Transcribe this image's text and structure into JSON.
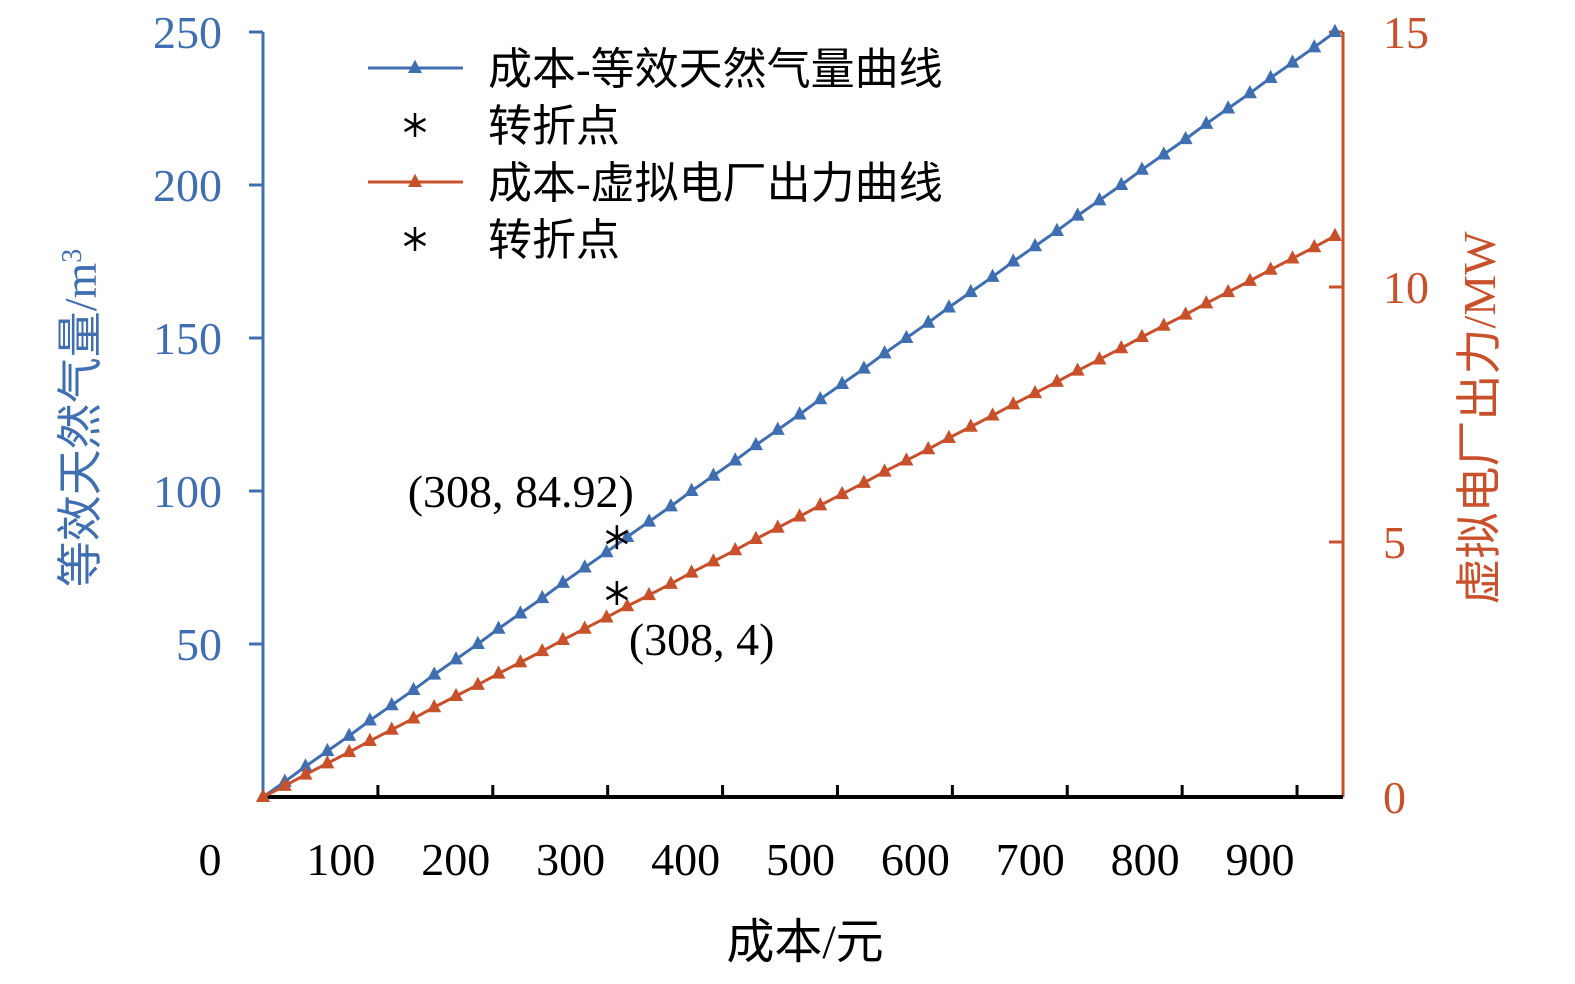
{
  "chart_data": {
    "type": "line",
    "title": "",
    "xlabel": "成本/元",
    "x_ticks": [
      "0",
      "100",
      "200",
      "300",
      "400",
      "500",
      "600",
      "700",
      "800",
      "900"
    ],
    "xlim": [
      0,
      940
    ],
    "y_left": {
      "label": "等效天然气量/m",
      "label_sup": "3",
      "ticks": [
        "50",
        "100",
        "150",
        "200",
        "250"
      ],
      "ylim": [
        0,
        250
      ],
      "color": "#3f6fb0"
    },
    "y_right": {
      "label": "虚拟电厂出力/MW",
      "ticks": [
        "0",
        "5",
        "10",
        "15"
      ],
      "ylim": [
        0,
        15
      ],
      "color": "#c8502a"
    },
    "series": [
      {
        "name": "成本-等效天然气量曲线",
        "axis": "left",
        "color": "#3f6fb0",
        "x": [
          0,
          19,
          37,
          56,
          75,
          93,
          112,
          131,
          149,
          168,
          187,
          205,
          224,
          243,
          261,
          280,
          299,
          317,
          336,
          355,
          373,
          392,
          411,
          429,
          448,
          467,
          485,
          504,
          523,
          541,
          560,
          579,
          597,
          616,
          635,
          653,
          672,
          691,
          709,
          728,
          747,
          765,
          784,
          803,
          821,
          840,
          859,
          877,
          896,
          915,
          933
        ],
        "y": [
          0,
          5,
          10,
          15,
          20,
          25,
          30,
          35,
          40,
          45,
          50,
          55,
          60,
          65,
          70,
          75,
          80,
          85,
          90,
          95,
          100,
          105,
          110,
          115,
          120,
          125,
          130,
          135,
          140,
          145,
          150,
          155,
          160,
          165,
          170,
          175,
          180,
          185,
          190,
          195,
          200,
          205,
          210,
          215,
          220,
          225,
          230,
          235,
          240,
          245,
          250
        ]
      },
      {
        "name": "成本-虚拟电厂出力曲线",
        "axis": "right",
        "color": "#c8502a",
        "x": [
          0,
          19,
          37,
          56,
          75,
          93,
          112,
          131,
          149,
          168,
          187,
          205,
          224,
          243,
          261,
          280,
          299,
          317,
          336,
          355,
          373,
          392,
          411,
          429,
          448,
          467,
          485,
          504,
          523,
          541,
          560,
          579,
          597,
          616,
          635,
          653,
          672,
          691,
          709,
          728,
          747,
          765,
          784,
          803,
          821,
          840,
          859,
          877,
          896,
          915,
          933
        ],
        "y": [
          0,
          0.22,
          0.44,
          0.66,
          0.88,
          1.1,
          1.32,
          1.54,
          1.76,
          1.98,
          2.2,
          2.42,
          2.64,
          2.86,
          3.08,
          3.3,
          3.52,
          3.74,
          3.96,
          4.18,
          4.4,
          4.62,
          4.84,
          5.06,
          5.28,
          5.5,
          5.72,
          5.94,
          6.16,
          6.38,
          6.6,
          6.82,
          7.04,
          7.26,
          7.48,
          7.7,
          7.92,
          8.14,
          8.36,
          8.58,
          8.8,
          9.02,
          9.24,
          9.46,
          9.68,
          9.9,
          10.12,
          10.34,
          10.56,
          10.78,
          11
        ]
      }
    ],
    "turning_points": [
      {
        "name": "转折点",
        "axis": "left",
        "x": 308,
        "y": 84.92,
        "label": "(308, 84.92)"
      },
      {
        "name": "转折点",
        "axis": "right",
        "x": 308,
        "y": 4,
        "label": "(308, 4)"
      }
    ],
    "legend": {
      "position": "top-left",
      "entries": [
        {
          "label": "成本-等效天然气量曲线",
          "kind": "line",
          "color": "#3f6fb0"
        },
        {
          "label": "转折点",
          "kind": "star",
          "color": "#000000"
        },
        {
          "label": "成本-虚拟电厂出力曲线",
          "kind": "line",
          "color": "#c8502a"
        },
        {
          "label": "转折点",
          "kind": "star",
          "color": "#000000"
        }
      ]
    }
  }
}
